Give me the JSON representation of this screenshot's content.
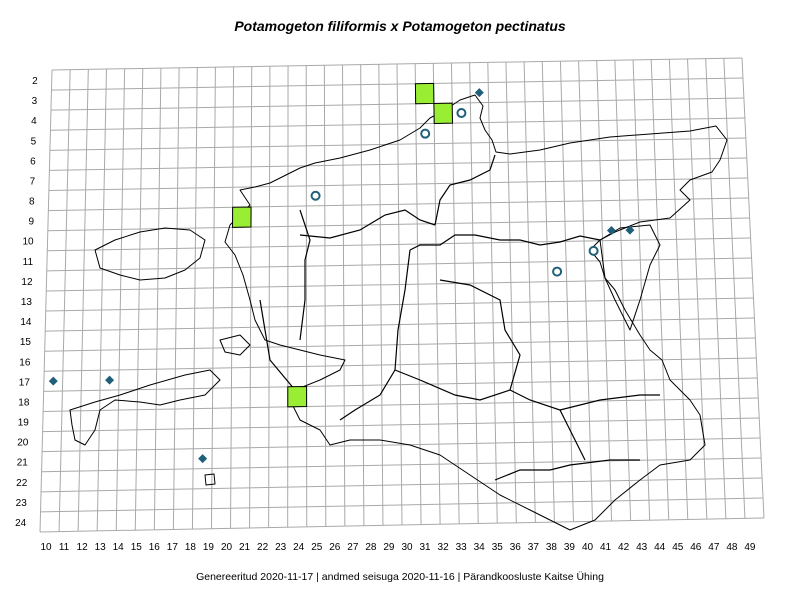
{
  "title": "Potamogeton filiformis x Potamogeton pectinatus",
  "footer": "Genereeritud 2020-11-17  |  andmed seisuga 2020-11-16  |  Pärandkoosluste Kaitse Ühing",
  "axes": {
    "x_labels": [
      "10",
      "11",
      "12",
      "13",
      "14",
      "15",
      "16",
      "17",
      "18",
      "19",
      "20",
      "21",
      "22",
      "23",
      "24",
      "25",
      "26",
      "27",
      "28",
      "29",
      "30",
      "31",
      "32",
      "33",
      "34",
      "35",
      "36",
      "37",
      "38",
      "39",
      "40",
      "41",
      "42",
      "43",
      "44",
      "45",
      "46",
      "47",
      "48",
      "49"
    ],
    "y_labels": [
      "2",
      "3",
      "4",
      "5",
      "6",
      "7",
      "8",
      "9",
      "10",
      "11",
      "12",
      "13",
      "14",
      "15",
      "16",
      "17",
      "18",
      "19",
      "20",
      "21",
      "22",
      "23",
      "24"
    ]
  },
  "legend_colors": {
    "square": "#99ee33",
    "circle": "#1f5f7a",
    "diamond": "#1f5f7a"
  },
  "markers": {
    "squares": [
      {
        "x": 31,
        "y": 3
      },
      {
        "x": 32,
        "y": 4
      },
      {
        "x": 21,
        "y": 9
      },
      {
        "x": 24,
        "y": 18
      }
    ],
    "circles": [
      {
        "x": 33,
        "y": 4
      },
      {
        "x": 31,
        "y": 5
      },
      {
        "x": 25,
        "y": 8
      },
      {
        "x": 40,
        "y": 11
      },
      {
        "x": 38,
        "y": 12
      }
    ],
    "diamonds": [
      {
        "x": 34,
        "y": 3
      },
      {
        "x": 41,
        "y": 10
      },
      {
        "x": 42,
        "y": 10
      },
      {
        "x": 11,
        "y": 17
      },
      {
        "x": 14,
        "y": 17
      },
      {
        "x": 19,
        "y": 21
      }
    ]
  }
}
